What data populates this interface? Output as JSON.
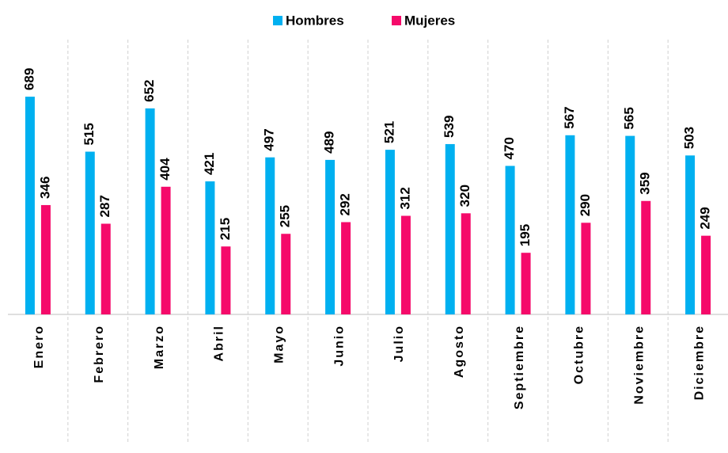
{
  "chart_data": {
    "type": "bar",
    "categories": [
      "Enero",
      "Febrero",
      "Marzo",
      "Abril",
      "Mayo",
      "Junio",
      "Julio",
      "Agosto",
      "Septiembre",
      "Octubre",
      "Noviembre",
      "Diciembre"
    ],
    "series": [
      {
        "name": "Hombres",
        "color": "#00b0f0",
        "values": [
          689,
          515,
          652,
          421,
          497,
          489,
          521,
          539,
          470,
          567,
          565,
          503
        ]
      },
      {
        "name": "Mujeres",
        "color": "#f50a6a",
        "values": [
          346,
          287,
          404,
          215,
          255,
          292,
          312,
          320,
          195,
          290,
          359,
          249
        ]
      }
    ],
    "legend": "top"
  }
}
